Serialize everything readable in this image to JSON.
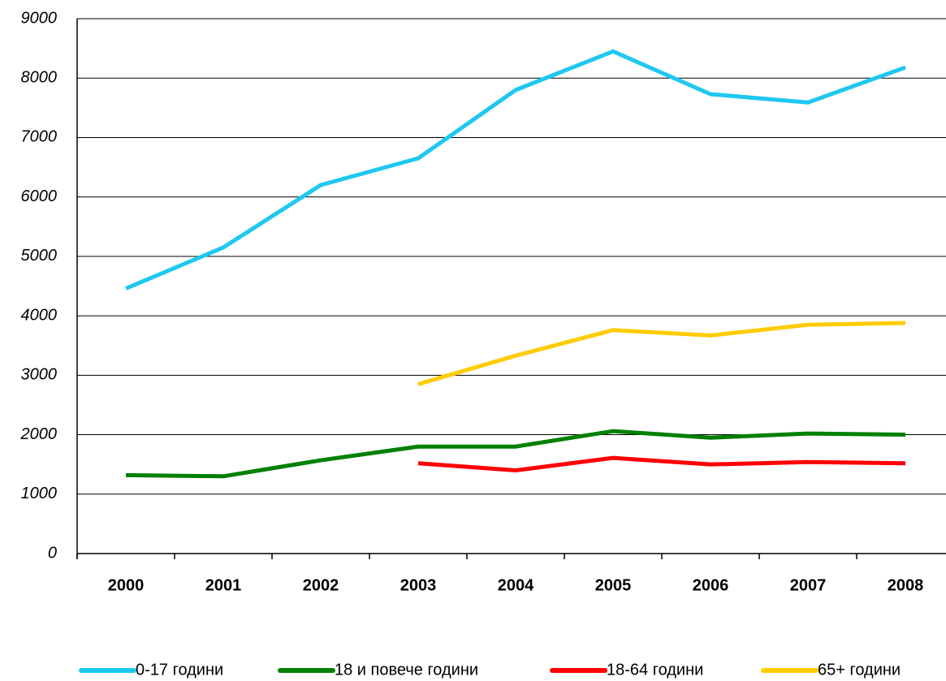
{
  "chart_data": {
    "type": "line",
    "categories": [
      "2000",
      "2001",
      "2002",
      "2003",
      "2004",
      "2005",
      "2006",
      "2007",
      "2008"
    ],
    "series": [
      {
        "name": "0-17 години",
        "color": "#1ec8f0",
        "values": [
          4460,
          5150,
          6200,
          6650,
          7800,
          8450,
          7730,
          7590,
          8180
        ]
      },
      {
        "name": "18 и повече години",
        "color": "#008000",
        "values": [
          1320,
          1300,
          1570,
          1800,
          1800,
          2060,
          1950,
          2020,
          2000
        ]
      },
      {
        "name": "18-64 години",
        "color": "#ff0000",
        "values": [
          null,
          null,
          null,
          1520,
          1400,
          1610,
          1500,
          1540,
          1520
        ]
      },
      {
        "name": "65+ години",
        "color": "#ffcc00",
        "values": [
          null,
          null,
          null,
          2850,
          3330,
          3760,
          3670,
          3850,
          3880
        ]
      }
    ],
    "ylim": [
      0,
      9000
    ],
    "yticks": [
      0,
      1000,
      2000,
      3000,
      4000,
      5000,
      6000,
      7000,
      8000,
      9000
    ],
    "grid": true,
    "legend": "bottom"
  }
}
